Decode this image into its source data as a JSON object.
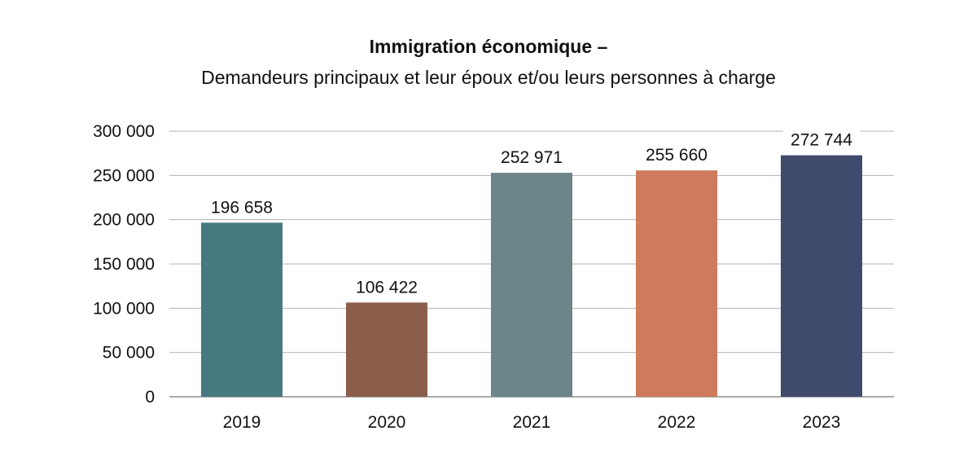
{
  "chart_data": {
    "type": "bar",
    "title": "Immigration économique –",
    "subtitle": "Demandeurs principaux et leur époux et/ou leurs personnes à charge",
    "categories": [
      "2019",
      "2020",
      "2021",
      "2022",
      "2023"
    ],
    "values": [
      196658,
      106422,
      252971,
      255660,
      272744
    ],
    "value_labels": [
      "196 658",
      "106 422",
      "252 971",
      "255 660",
      "272 744"
    ],
    "colors": [
      "#467a80",
      "#8a5e4a",
      "#6b8589",
      "#cd7b5c",
      "#3f4a6c"
    ],
    "ylim": [
      0,
      300000
    ],
    "yticks": [
      0,
      50000,
      100000,
      150000,
      200000,
      250000,
      300000
    ],
    "ytick_labels": [
      "0",
      "50 000",
      "100 000",
      "150 000",
      "200 000",
      "250 000",
      "300 000"
    ],
    "grid": true,
    "legend": "none"
  }
}
